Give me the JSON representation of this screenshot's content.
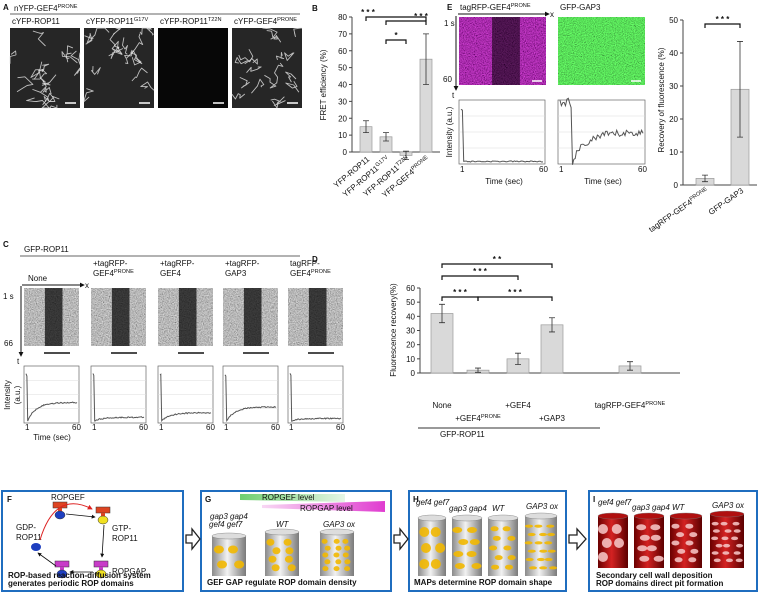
{
  "panel_a": {
    "label": "A",
    "title": {
      "text": "nYFP-GEF4",
      "sup": "PRONE"
    },
    "images": [
      {
        "text": "cYFP-ROP11",
        "sup": ""
      },
      {
        "text": "cYFP-ROP11",
        "sup": "G17V"
      },
      {
        "text": "cYFP-ROP11",
        "sup": "T22N"
      },
      {
        "text": "cYFP-GEF4",
        "sup": "PRONE"
      }
    ]
  },
  "chart_data": [
    {
      "type": "bar",
      "panel_label": "B",
      "ylabel": "FRET efficiency (%)",
      "categories": [
        {
          "text": "YFP-ROP11",
          "sup": ""
        },
        {
          "text": "YFP-ROP11",
          "sup": "G17V"
        },
        {
          "text": "YFP-ROP11",
          "sup": "T22N"
        },
        {
          "text": "YFP-GEF4",
          "sup": "PRONE"
        }
      ],
      "values": [
        15,
        9,
        -2,
        55
      ],
      "errors": [
        3.5,
        2.5,
        2.5,
        15
      ],
      "color": "#d9d9d9",
      "ylim": [
        0,
        80
      ],
      "yticks": [
        0,
        10,
        20,
        30,
        40,
        50,
        60,
        70,
        80
      ],
      "annotations": [
        "* * *",
        "*",
        "* * *"
      ]
    },
    {
      "type": "bar",
      "panel_label": "D",
      "ylabel": "Fluorescence recovery(%)",
      "categories": [
        {
          "text": "None",
          "sup": ""
        },
        {
          "text": "+GEF4",
          "sup": "PRONE"
        },
        {
          "text": "+GEF4",
          "sup": ""
        },
        {
          "text": "+GAP3",
          "sup": ""
        },
        {
          "text": "tagRFP-GEF4",
          "sup": "PRONE"
        }
      ],
      "group_label": "GFP-ROP11",
      "values": [
        42,
        2,
        10,
        34,
        5
      ],
      "errors": [
        6.5,
        1.5,
        4,
        5,
        3
      ],
      "color": "#d9d9d9",
      "ylim": [
        0,
        60
      ],
      "yticks": [
        0,
        10,
        20,
        30,
        40,
        50,
        60
      ],
      "annotations": [
        "* *",
        "* * *",
        "* * *",
        "* * *"
      ]
    },
    {
      "type": "bar",
      "ylabel": "Recovery of fluorescence (%)",
      "categories": [
        {
          "text": "tagRFP-GEF4",
          "sup": "PRONE"
        },
        {
          "text": "GFP-GAP3",
          "sup": ""
        }
      ],
      "values": [
        2,
        29
      ],
      "errors": [
        1,
        14.5
      ],
      "color": "#d9d9d9",
      "ylim": [
        0,
        50
      ],
      "yticks": [
        0,
        10,
        20,
        30,
        40,
        50
      ],
      "annotations": [
        "* * *"
      ]
    }
  ],
  "panel_e": {
    "label": "E",
    "kymographs": [
      {
        "text": "tagRFP-GEF4",
        "sup": "PRONE"
      },
      "GFP-GAP3"
    ],
    "time_start": "1 s",
    "time_end": 60,
    "t_axis": "t",
    "x_axis": "x",
    "ylabel": "Intensity (a.u.)",
    "xlabel": "Time (sec)",
    "plot_ticks": [
      1,
      60
    ]
  },
  "panel_c": {
    "label": "C",
    "title": "GFP-ROP11",
    "columns": [
      [
        "None"
      ],
      [
        "+tagRFP-",
        {
          "text": "GEF4",
          "sup": "PRONE"
        }
      ],
      [
        "+tagRFP-",
        "GEF4"
      ],
      [
        "+tagRFP-",
        "GAP3"
      ],
      [
        "tagRFP-",
        {
          "text": "GEF4",
          "sup": "PRONE"
        }
      ]
    ],
    "time_start": "1 s",
    "time_end": 66,
    "t_axis": "t",
    "x_axis": "x",
    "ylabel": [
      "Intensity",
      "(a.u.)"
    ],
    "xlabel": "Time (sec)",
    "plot_ticks": [
      1,
      60
    ]
  },
  "panel_f": {
    "label": "F",
    "ropgef": "ROPGEF",
    "gdp": [
      "GDP-",
      "ROP11"
    ],
    "gtp": [
      "GTP-",
      "ROP11"
    ],
    "ropgap": "ROPGAP",
    "caption": [
      "ROP-based reaction-diffusion system",
      "generates periodic ROP domains"
    ]
  },
  "panel_g": {
    "label": "G",
    "gef_level": "ROPGEF level",
    "gap_level": "ROPGAP level",
    "genotypes": [
      "gap3 gap4",
      "gef4 gef7",
      "WT",
      "GAP3 ox"
    ],
    "caption": "GEF GAP regulate ROP domain density"
  },
  "panel_h": {
    "label": "H",
    "genotypes": [
      "gef4 gef7",
      "gap3 gap4",
      "WT",
      "GAP3 ox"
    ],
    "caption": "MAPs determine ROP domain shape"
  },
  "panel_i": {
    "label": "I",
    "genotypes": [
      "gef4 gef7",
      "gap3 gap4",
      "WT",
      "GAP3 ox"
    ],
    "caption": [
      "Secondary cell wall deposition",
      "ROP domains direct pit formation"
    ]
  }
}
